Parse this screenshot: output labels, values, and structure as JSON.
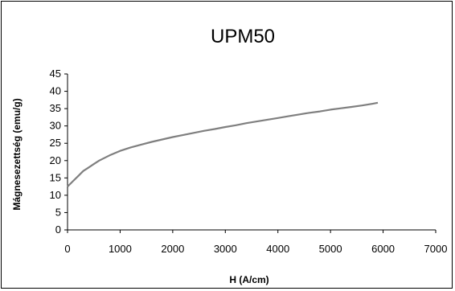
{
  "chart_data": {
    "type": "line",
    "title": "UPM50",
    "xlabel": "H (A/cm)",
    "ylabel": "Mágnesezettség (emu/g)",
    "xlim": [
      0,
      7000
    ],
    "ylim": [
      0,
      45
    ],
    "x_ticks": [
      "0",
      "1000",
      "2000",
      "3000",
      "4000",
      "5000",
      "6000",
      "7000"
    ],
    "y_ticks": [
      "0",
      "5",
      "10",
      "15",
      "20",
      "25",
      "30",
      "35",
      "40",
      "45"
    ],
    "grid": false,
    "legend": "none",
    "series": [
      {
        "color": "#7f7f7f",
        "x": [
          0,
          100,
          200,
          300,
          400,
          500,
          600,
          800,
          1000,
          1200,
          1400,
          1600,
          1800,
          2000,
          2200,
          2400,
          2600,
          2800,
          3000,
          3200,
          3400,
          3600,
          3800,
          4000,
          4200,
          4400,
          4600,
          4800,
          5000,
          5200,
          5400,
          5600,
          5800,
          5900
        ],
        "y": [
          12.5,
          14.0,
          15.5,
          17.0,
          18.0,
          19.0,
          20.0,
          21.5,
          22.8,
          23.8,
          24.6,
          25.4,
          26.1,
          26.8,
          27.4,
          28.0,
          28.6,
          29.1,
          29.7,
          30.2,
          30.8,
          31.3,
          31.8,
          32.3,
          32.8,
          33.3,
          33.8,
          34.2,
          34.7,
          35.1,
          35.5,
          35.9,
          36.4,
          36.7
        ]
      }
    ]
  }
}
